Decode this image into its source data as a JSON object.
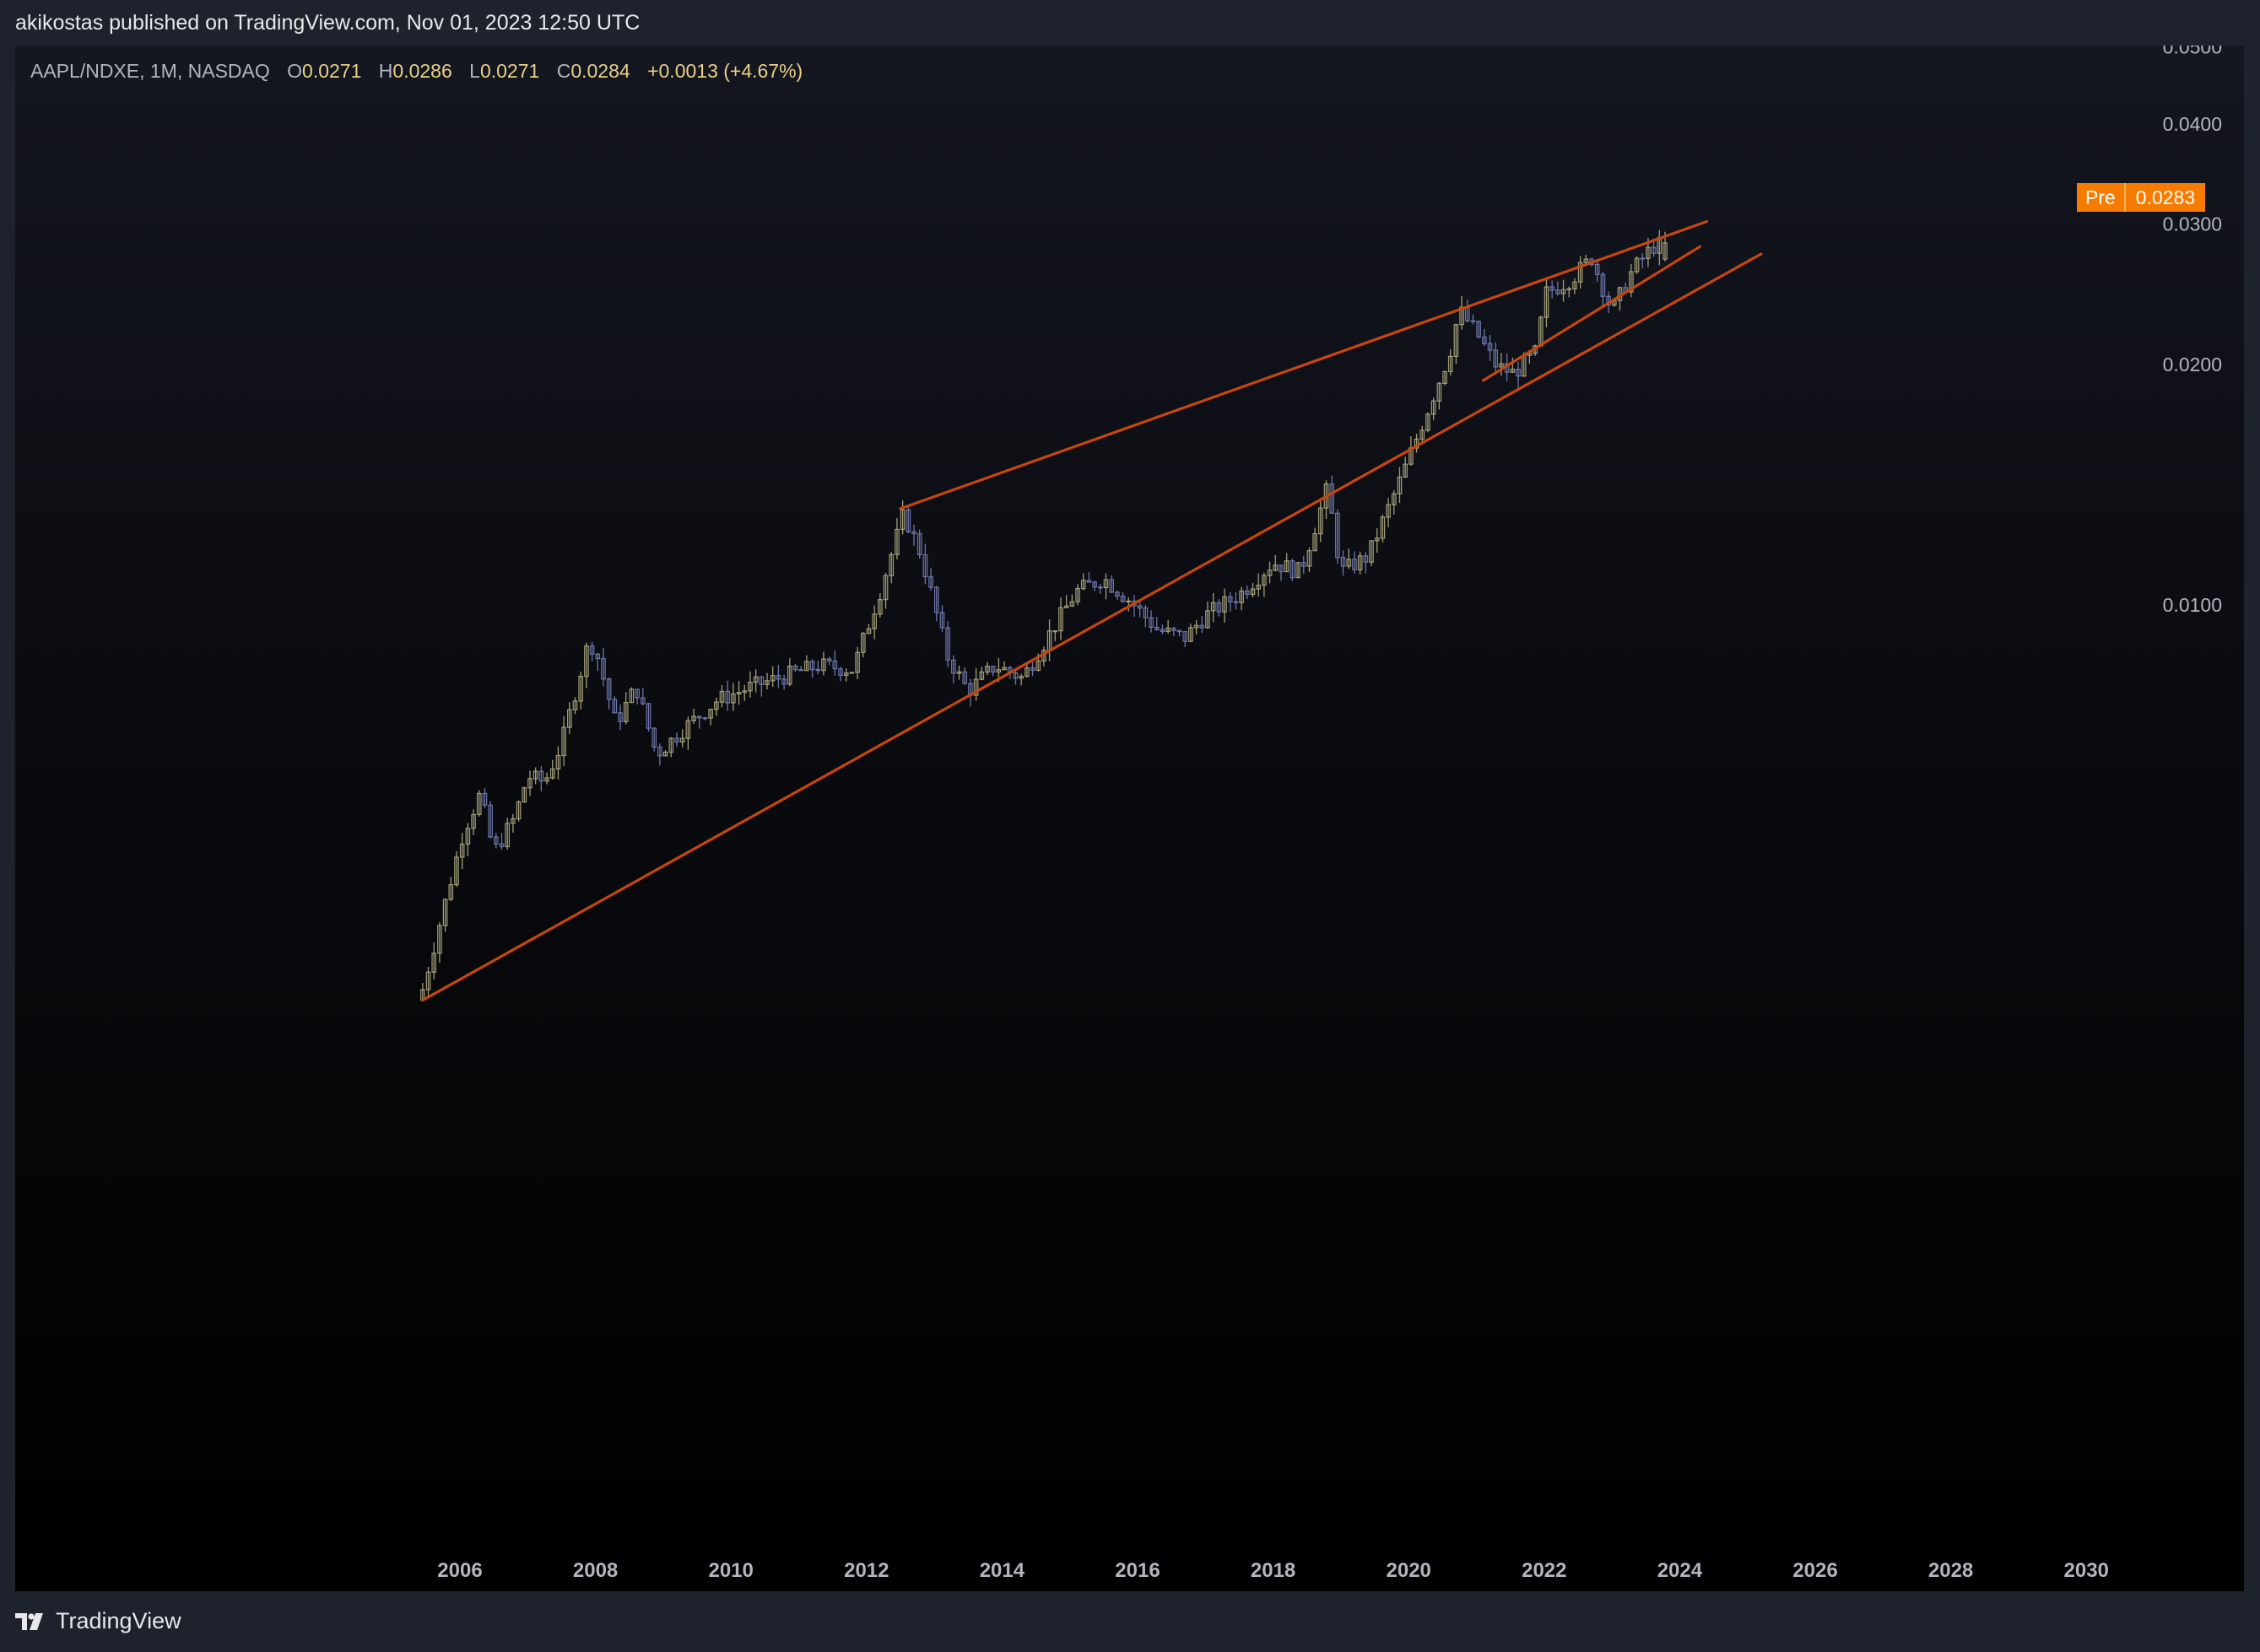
{
  "header": {
    "published_text": "akikostas published on TradingView.com, Nov 01, 2023 12:50 UTC"
  },
  "legend": {
    "symbol": "AAPL/NDXE, 1M, NASDAQ",
    "open_label": "O",
    "open": "0.0271",
    "high_label": "H",
    "high": "0.0286",
    "low_label": "L",
    "low": "0.0271",
    "close_label": "C",
    "close": "0.0284",
    "change": "+0.0013 (+4.67%)"
  },
  "pre_badge": {
    "label": "Pre",
    "value": "0.0283"
  },
  "footer": {
    "brand": "TradingView"
  },
  "colors": {
    "trendline": "#c7460f",
    "candle_up": "#a39d78",
    "candle_down": "#6d76a8",
    "axis_text": "#b2b5be",
    "badge": "#f57c00"
  },
  "chart_data": {
    "type": "candlestick",
    "title": "AAPL/NDXE, 1M, NASDAQ",
    "scale": "log",
    "x_axis": {
      "ticks": [
        "2006",
        "2008",
        "2010",
        "2012",
        "2014",
        "2016",
        "2018",
        "2020",
        "2022",
        "2024",
        "2026",
        "2028",
        "2030"
      ]
    },
    "y_axis": {
      "ticks": [
        "0.0500",
        "0.0400",
        "0.0300",
        "0.0200",
        "0.0100"
      ],
      "position": "right"
    },
    "grid": false,
    "price_path": [
      [
        2005.45,
        0.0033
      ],
      [
        2005.8,
        0.0043
      ],
      [
        2006.05,
        0.0052
      ],
      [
        2006.3,
        0.0058
      ],
      [
        2006.5,
        0.0049
      ],
      [
        2006.8,
        0.0054
      ],
      [
        2007.0,
        0.0061
      ],
      [
        2007.25,
        0.006
      ],
      [
        2007.5,
        0.0067
      ],
      [
        2007.9,
        0.009
      ],
      [
        2008.0,
        0.0088
      ],
      [
        2008.3,
        0.0071
      ],
      [
        2008.6,
        0.0079
      ],
      [
        2008.9,
        0.0065
      ],
      [
        2009.3,
        0.007
      ],
      [
        2009.8,
        0.0076
      ],
      [
        2010.3,
        0.0079
      ],
      [
        2010.9,
        0.0082
      ],
      [
        2011.3,
        0.0084
      ],
      [
        2011.8,
        0.0083
      ],
      [
        2012.2,
        0.0104
      ],
      [
        2012.55,
        0.013
      ],
      [
        2012.8,
        0.0116
      ],
      [
        2013.2,
        0.0086
      ],
      [
        2013.5,
        0.0078
      ],
      [
        2013.9,
        0.0084
      ],
      [
        2014.3,
        0.0081
      ],
      [
        2014.7,
        0.0092
      ],
      [
        2015.1,
        0.0104
      ],
      [
        2015.5,
        0.0108
      ],
      [
        2015.9,
        0.0101
      ],
      [
        2016.3,
        0.0093
      ],
      [
        2016.7,
        0.0091
      ],
      [
        2017.0,
        0.0097
      ],
      [
        2017.5,
        0.0103
      ],
      [
        2018.0,
        0.0113
      ],
      [
        2018.4,
        0.011
      ],
      [
        2018.8,
        0.014
      ],
      [
        2019.0,
        0.011
      ],
      [
        2019.4,
        0.0115
      ],
      [
        2019.9,
        0.0145
      ],
      [
        2020.3,
        0.0177
      ],
      [
        2020.6,
        0.0206
      ],
      [
        2020.75,
        0.0234
      ],
      [
        2021.0,
        0.0219
      ],
      [
        2021.3,
        0.0199
      ],
      [
        2021.55,
        0.0195
      ],
      [
        2021.9,
        0.0208
      ],
      [
        2022.0,
        0.0245
      ],
      [
        2022.4,
        0.0256
      ],
      [
        2022.7,
        0.0272
      ],
      [
        2023.0,
        0.0233
      ],
      [
        2023.3,
        0.0262
      ],
      [
        2023.6,
        0.0281
      ],
      [
        2023.83,
        0.0284
      ]
    ],
    "trendlines": [
      {
        "name": "support",
        "from": [
          2005.45,
          0.0032
        ],
        "to": [
          2025.2,
          0.0275
        ]
      },
      {
        "name": "resistance",
        "from": [
          2012.5,
          0.0132
        ],
        "to": [
          2024.4,
          0.0302
        ]
      },
      {
        "name": "channel-lower",
        "from": [
          2021.1,
          0.0191
        ],
        "to": [
          2024.3,
          0.0281
        ]
      }
    ],
    "last": {
      "open": 0.0271,
      "high": 0.0286,
      "low": 0.0271,
      "close": 0.0284,
      "change": 0.0013,
      "change_pct": 4.67
    }
  }
}
